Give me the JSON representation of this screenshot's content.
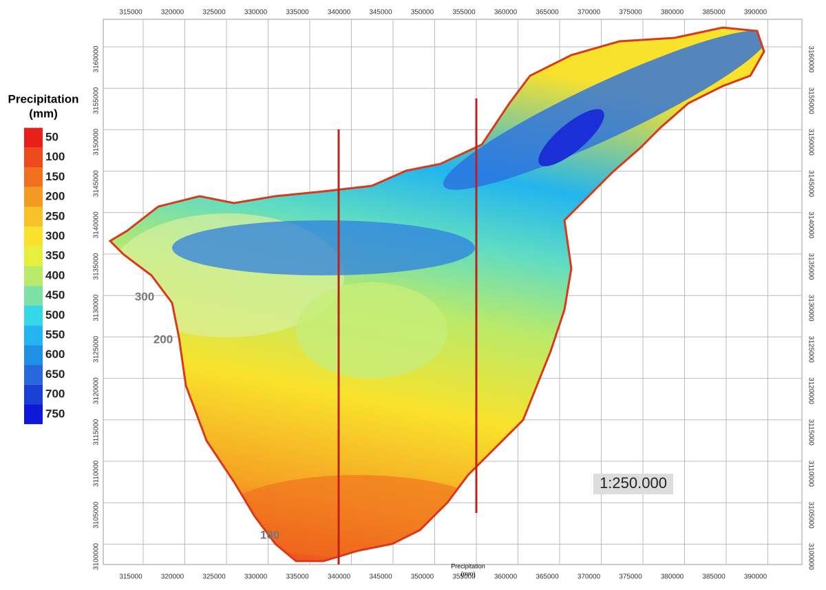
{
  "legend": {
    "title": [
      "Precipitation",
      "(mm)"
    ],
    "levels": [
      {
        "label": "50",
        "color": "#e8201a"
      },
      {
        "label": "100",
        "color": "#ec4a1c"
      },
      {
        "label": "150",
        "color": "#f0701e"
      },
      {
        "label": "200",
        "color": "#f39a22"
      },
      {
        "label": "250",
        "color": "#f7c227"
      },
      {
        "label": "300",
        "color": "#f9e22c"
      },
      {
        "label": "350",
        "color": "#e6ef3c"
      },
      {
        "label": "400",
        "color": "#b9ea6a"
      },
      {
        "label": "450",
        "color": "#7fe0a6"
      },
      {
        "label": "500",
        "color": "#33d9e6"
      },
      {
        "label": "550",
        "color": "#22b5ee"
      },
      {
        "label": "600",
        "color": "#2090e6"
      },
      {
        "label": "650",
        "color": "#2569dc"
      },
      {
        "label": "700",
        "color": "#1a3fd6"
      },
      {
        "label": "750",
        "color": "#0f18d8"
      }
    ]
  },
  "x_axis": {
    "ticks": [
      315000,
      320000,
      325000,
      330000,
      335000,
      340000,
      345000,
      350000,
      355000,
      360000,
      365000,
      370000,
      375000,
      380000,
      385000,
      390000
    ]
  },
  "y_axis": {
    "ticks": [
      3100000,
      3105000,
      3110000,
      3115000,
      3120000,
      3125000,
      3130000,
      3135000,
      3140000,
      3145000,
      3150000,
      3155000,
      3160000
    ]
  },
  "contour_labels": [
    "300",
    "200",
    "100"
  ],
  "scale": "1:250.000",
  "footer_label": [
    "Precipitation",
    "(mm)"
  ]
}
